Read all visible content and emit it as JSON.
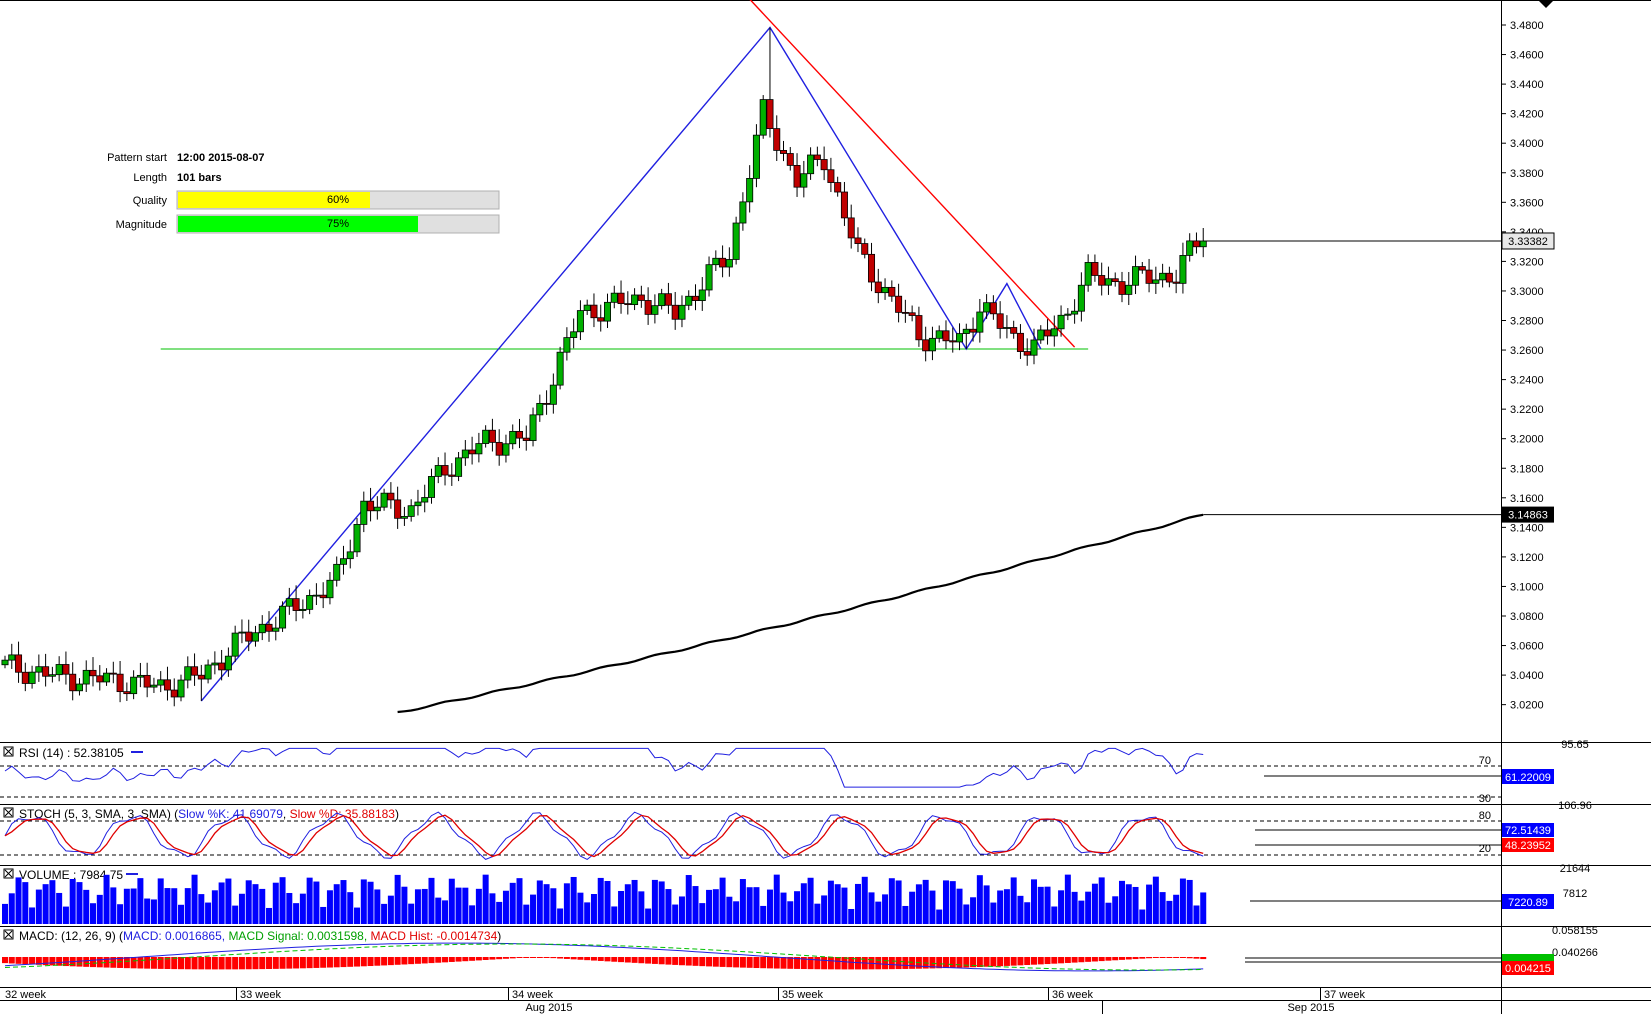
{
  "pattern_info": {
    "start_label": "Pattern start",
    "start_value": "12:00 2015-08-07",
    "length_label": "Length",
    "length_value": "101 bars",
    "quality_label": "Quality",
    "quality_text": "60%",
    "quality_fraction": 0.6,
    "magnitude_label": "Magnitude",
    "magnitude_text": "75%",
    "magnitude_fraction": 0.75
  },
  "colors": {
    "bull": "#00b000",
    "bear": "#c00000",
    "pattern_line": "#2020e0",
    "resistance_line": "#ff0000",
    "support_line": "#00c000",
    "ma_line": "#000000",
    "volume_bar": "#0000ff",
    "quality_fill": "#ffff00",
    "magnitude_fill": "#00ff00",
    "bar_bg": "#e0e0e0"
  },
  "price_axis": {
    "ticks": [
      "3.4800",
      "3.4600",
      "3.4400",
      "3.4200",
      "3.4000",
      "3.3800",
      "3.3600",
      "3.3400",
      "3.3200",
      "3.3000",
      "3.2800",
      "3.2600",
      "3.2400",
      "3.2200",
      "3.2000",
      "3.1800",
      "3.1600",
      "3.1400",
      "3.1200",
      "3.1000",
      "3.0800",
      "3.0600",
      "3.0400",
      "3.0200"
    ],
    "last_price_label": "3.33382",
    "ma_label": "3.14863"
  },
  "rsi": {
    "title": "RSI (14) : 52.38105",
    "top_label": "95.65",
    "level_high": "70",
    "level_low": "30",
    "value_label": "61.22009"
  },
  "stoch": {
    "title_prefix": "STOCH (5, 3, SMA, 3, SMA) (",
    "k_text": "Slow %K: 41.69079",
    "d_text": "Slow %D: 35.88183",
    "title_suffix": ")",
    "top_label": "106.96",
    "level_high": "80",
    "level_low": "20",
    "k_label": "72.51439",
    "d_label": "48.23952"
  },
  "volume": {
    "title": "VOLUME : 7984.75",
    "top_label": "21644",
    "mid_label": "7812",
    "value_label": "7220.89"
  },
  "macd": {
    "title_prefix": "MACD: (12, 26, 9) (",
    "macd_text": "MACD: 0.0016865,",
    "signal_text": "MACD Signal: 0.0031598,",
    "hist_text": "MACD Hist: -0.0014734",
    "title_suffix": ")",
    "top_label": "0.058155",
    "mid_label": "0.040266",
    "value_label": "0.004215"
  },
  "time_axis": {
    "weeks": [
      "32 week",
      "33 week",
      "34 week",
      "35 week",
      "36 week",
      "37 week"
    ],
    "months": [
      "Aug 2015",
      "Sep 2015"
    ]
  },
  "chart_data": {
    "type": "candlestick",
    "instrument_levels": {
      "support": 3.2607,
      "last_close": 3.33382,
      "moving_average_last": 3.14863
    },
    "pattern_points": [
      {
        "bar": 29,
        "price": 3.0225
      },
      {
        "bar": 113,
        "price": 3.4783
      },
      {
        "bar": 142,
        "price": 3.2607
      },
      {
        "bar": 148,
        "price": 3.305
      }
    ],
    "resistance_line": [
      {
        "bar": 110,
        "price": 3.4975
      },
      {
        "bar": 158,
        "price": 3.262
      }
    ],
    "ma_start": 3.0146,
    "indicators": {
      "rsi": 52.38105,
      "stoch_k": 41.69079,
      "stoch_d": 35.88183,
      "volume": 7984.75,
      "macd": 0.0016865,
      "macd_signal": 0.0031598,
      "macd_hist": -0.0014734
    }
  }
}
